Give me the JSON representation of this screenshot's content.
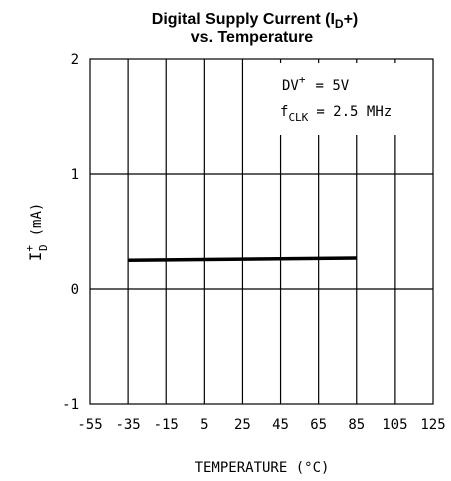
{
  "chart_data": {
    "type": "line",
    "title_line1": "Digital Supply Current (I",
    "title_line1_sub": "D",
    "title_line1_end": "+)",
    "title_line2": "vs. Temperature",
    "xlabel": "TEMPERATURE (°C)",
    "ylabel_main": "I",
    "ylabel_sup": "+",
    "ylabel_sub": "D",
    "ylabel_unit": "(mA)",
    "x_ticks": [
      "-55",
      "-35",
      "-15",
      "5",
      "25",
      "45",
      "65",
      "85",
      "105",
      "125"
    ],
    "y_ticks": [
      "2",
      "1",
      "0",
      "-1"
    ],
    "xlim": [
      -55,
      125
    ],
    "ylim": [
      -1,
      2
    ],
    "grid": true,
    "annotation_line1": "DV",
    "annotation_line1_sup": "+",
    "annotation_line1_end": "= 5V",
    "annotation_line2": "f",
    "annotation_line2_sub": "CLK",
    "annotation_line2_end": "= 2.5 MHz",
    "series": [
      {
        "x": [
          -35,
          85
        ],
        "y": [
          0.25,
          0.27
        ]
      }
    ]
  }
}
